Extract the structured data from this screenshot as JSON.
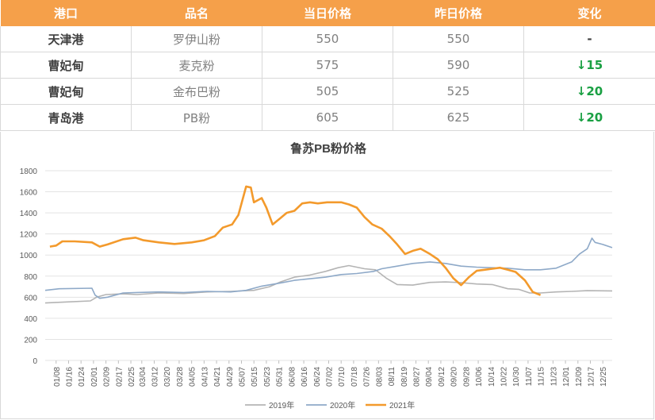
{
  "table": {
    "headers": [
      "港口",
      "品名",
      "当日价格",
      "昨日价格",
      "变化"
    ],
    "rows": [
      {
        "port": "天津港",
        "product": "罗伊山粉",
        "today": "550",
        "yesterday": "550",
        "change": "-",
        "change_dir": "flat"
      },
      {
        "port": "曹妃甸",
        "product": "麦克粉",
        "today": "575",
        "yesterday": "590",
        "change": "↓15",
        "change_dir": "down"
      },
      {
        "port": "曹妃甸",
        "product": "金布巴粉",
        "today": "505",
        "yesterday": "525",
        "change": "↓20",
        "change_dir": "down"
      },
      {
        "port": "青岛港",
        "product": "PB粉",
        "today": "605",
        "yesterday": "625",
        "change": "↓20",
        "change_dir": "down"
      }
    ],
    "colors": {
      "header_bg": "#f5a04a",
      "down": "#1aa043"
    }
  },
  "chart_data": {
    "type": "line",
    "title": "鲁苏PB粉价格",
    "xlabel": "",
    "ylabel": "",
    "ylim": [
      0,
      1800
    ],
    "yticks": [
      0,
      200,
      400,
      600,
      800,
      1000,
      1200,
      1400,
      1600,
      1800
    ],
    "x_tick_labels": [
      "01/08",
      "01/16",
      "01/24",
      "02/01",
      "02/09",
      "02/17",
      "02/25",
      "03/04",
      "03/12",
      "03/20",
      "03/28",
      "04/05",
      "04/13",
      "04/21",
      "04/29",
      "05/07",
      "05/15",
      "05/23",
      "05/31",
      "06/08",
      "06/16",
      "06/24",
      "07/02",
      "07/10",
      "07/18",
      "07/26",
      "08/03",
      "08/11",
      "08/19",
      "08/27",
      "09/04",
      "09/12",
      "09/20",
      "09/28",
      "10/06",
      "10/14",
      "10/22",
      "10/30",
      "11/07",
      "11/15",
      "11/23",
      "12/01",
      "12/09",
      "12/17",
      "12/25"
    ],
    "grid": "horizontal",
    "legend_position": "bottom",
    "series": [
      {
        "name": "2019年",
        "color": "#b4b4b4",
        "points": [
          [
            "01/01",
            545
          ],
          [
            "01/15",
            555
          ],
          [
            "01/30",
            565
          ],
          [
            "02/03",
            600
          ],
          [
            "02/09",
            625
          ],
          [
            "02/20",
            632
          ],
          [
            "03/01",
            625
          ],
          [
            "03/15",
            640
          ],
          [
            "03/31",
            635
          ],
          [
            "04/15",
            650
          ],
          [
            "04/30",
            655
          ],
          [
            "05/15",
            665
          ],
          [
            "05/25",
            700
          ],
          [
            "06/01",
            745
          ],
          [
            "06/10",
            790
          ],
          [
            "06/20",
            810
          ],
          [
            "06/30",
            845
          ],
          [
            "07/08",
            880
          ],
          [
            "07/15",
            900
          ],
          [
            "07/25",
            870
          ],
          [
            "08/01",
            860
          ],
          [
            "08/08",
            780
          ],
          [
            "08/15",
            720
          ],
          [
            "08/25",
            715
          ],
          [
            "09/05",
            740
          ],
          [
            "09/15",
            745
          ],
          [
            "09/25",
            738
          ],
          [
            "10/05",
            725
          ],
          [
            "10/15",
            720
          ],
          [
            "10/25",
            680
          ],
          [
            "11/01",
            675
          ],
          [
            "11/08",
            640
          ],
          [
            "11/15",
            640
          ],
          [
            "11/25",
            650
          ],
          [
            "12/05",
            655
          ],
          [
            "12/15",
            662
          ],
          [
            "12/31",
            660
          ]
        ]
      },
      {
        "name": "2020年",
        "color": "#8ea9c8",
        "points": [
          [
            "01/01",
            665
          ],
          [
            "01/10",
            680
          ],
          [
            "01/31",
            685
          ],
          [
            "02/02",
            620
          ],
          [
            "02/05",
            590
          ],
          [
            "02/10",
            600
          ],
          [
            "02/20",
            640
          ],
          [
            "03/01",
            645
          ],
          [
            "03/15",
            650
          ],
          [
            "03/31",
            645
          ],
          [
            "04/15",
            655
          ],
          [
            "04/30",
            650
          ],
          [
            "05/10",
            665
          ],
          [
            "05/20",
            705
          ],
          [
            "06/01",
            735
          ],
          [
            "06/10",
            760
          ],
          [
            "06/20",
            775
          ],
          [
            "06/30",
            790
          ],
          [
            "07/10",
            815
          ],
          [
            "07/20",
            825
          ],
          [
            "07/31",
            845
          ],
          [
            "08/05",
            870
          ],
          [
            "08/15",
            895
          ],
          [
            "08/25",
            920
          ],
          [
            "09/05",
            935
          ],
          [
            "09/15",
            920
          ],
          [
            "09/25",
            895
          ],
          [
            "10/05",
            885
          ],
          [
            "10/15",
            880
          ],
          [
            "10/25",
            875
          ],
          [
            "11/05",
            860
          ],
          [
            "11/15",
            860
          ],
          [
            "11/25",
            875
          ],
          [
            "12/05",
            935
          ],
          [
            "12/10",
            1010
          ],
          [
            "12/15",
            1060
          ],
          [
            "12/18",
            1160
          ],
          [
            "12/20",
            1120
          ],
          [
            "12/25",
            1100
          ],
          [
            "12/31",
            1070
          ]
        ]
      },
      {
        "name": "2021年",
        "color": "#f39a2c",
        "points": [
          [
            "01/04",
            1080
          ],
          [
            "01/08",
            1090
          ],
          [
            "01/12",
            1130
          ],
          [
            "01/20",
            1130
          ],
          [
            "01/31",
            1120
          ],
          [
            "02/05",
            1080
          ],
          [
            "02/10",
            1100
          ],
          [
            "02/20",
            1150
          ],
          [
            "02/28",
            1165
          ],
          [
            "03/05",
            1140
          ],
          [
            "03/15",
            1120
          ],
          [
            "03/25",
            1105
          ],
          [
            "04/05",
            1120
          ],
          [
            "04/13",
            1140
          ],
          [
            "04/20",
            1180
          ],
          [
            "04/25",
            1260
          ],
          [
            "05/01",
            1290
          ],
          [
            "05/05",
            1380
          ],
          [
            "05/10",
            1650
          ],
          [
            "05/13",
            1640
          ],
          [
            "05/15",
            1500
          ],
          [
            "05/20",
            1540
          ],
          [
            "05/23",
            1450
          ],
          [
            "05/27",
            1290
          ],
          [
            "06/01",
            1350
          ],
          [
            "06/05",
            1400
          ],
          [
            "06/10",
            1420
          ],
          [
            "06/15",
            1490
          ],
          [
            "06/20",
            1500
          ],
          [
            "06/25",
            1490
          ],
          [
            "07/01",
            1500
          ],
          [
            "07/10",
            1500
          ],
          [
            "07/15",
            1480
          ],
          [
            "07/20",
            1450
          ],
          [
            "07/25",
            1360
          ],
          [
            "07/30",
            1290
          ],
          [
            "08/05",
            1250
          ],
          [
            "08/10",
            1180
          ],
          [
            "08/15",
            1100
          ],
          [
            "08/20",
            1010
          ],
          [
            "08/25",
            1040
          ],
          [
            "08/30",
            1060
          ],
          [
            "09/05",
            1010
          ],
          [
            "09/10",
            960
          ],
          [
            "09/15",
            880
          ],
          [
            "09/20",
            780
          ],
          [
            "09/25",
            715
          ],
          [
            "09/30",
            790
          ],
          [
            "10/05",
            850
          ],
          [
            "10/10",
            860
          ],
          [
            "10/15",
            870
          ],
          [
            "10/20",
            880
          ],
          [
            "10/25",
            860
          ],
          [
            "10/30",
            840
          ],
          [
            "11/05",
            760
          ],
          [
            "11/10",
            650
          ],
          [
            "11/15",
            620
          ]
        ]
      }
    ]
  }
}
